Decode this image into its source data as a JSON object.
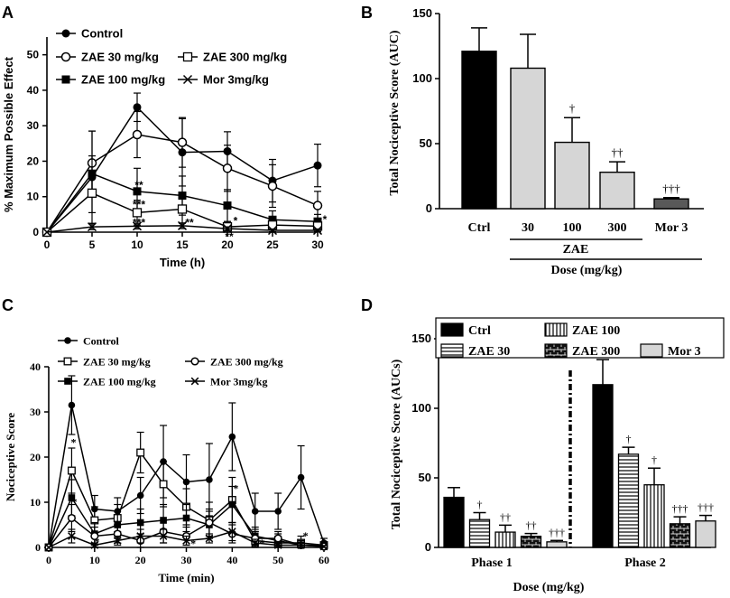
{
  "chart_data": [
    {
      "panel": "A",
      "type": "line",
      "xlabel": "Time (h)",
      "ylabel": "% Maximum Possible Effect",
      "xlim": [
        0,
        30
      ],
      "ylim": [
        0,
        55
      ],
      "x_ticks": [
        "0",
        "5",
        "10",
        "15",
        "20",
        "25",
        "30"
      ],
      "y_ticks": [
        "0",
        "10",
        "20",
        "30",
        "40",
        "50"
      ],
      "legend": [
        "Control",
        "ZAE 30 mg/kg",
        "ZAE 300 mg/kg",
        "ZAE 100 mg/kg",
        "Mor 3mg/kg"
      ],
      "x": [
        0,
        5,
        10,
        15,
        20,
        25,
        30
      ],
      "series": [
        {
          "name": "Control",
          "values": [
            0,
            15.5,
            35.2,
            22.5,
            22.8,
            14.5,
            18.8
          ],
          "err": [
            0,
            13,
            4,
            9.5,
            5.5,
            6,
            6
          ]
        },
        {
          "name": "ZAE 30 mg/kg",
          "values": [
            0,
            19.5,
            27.5,
            25.3,
            18,
            13,
            7.5
          ],
          "err": [
            0,
            9,
            6.5,
            7,
            6.5,
            6,
            4
          ]
        },
        {
          "name": "ZAE 100 mg/kg",
          "values": [
            0,
            16.5,
            11.5,
            10.3,
            7.5,
            3.5,
            3
          ],
          "err": [
            0,
            5,
            6.5,
            5.5,
            4.5,
            2.5,
            2
          ]
        },
        {
          "name": "ZAE 300 mg/kg",
          "values": [
            0,
            11,
            5.5,
            6.5,
            1.5,
            2,
            1.7
          ],
          "err": [
            0,
            5.5,
            3.5,
            4,
            1.5,
            2,
            1.5
          ]
        },
        {
          "name": "Mor 3mg/kg",
          "values": [
            0,
            1.5,
            1.7,
            1.8,
            1,
            0.5,
            0.5
          ],
          "err": [
            0,
            0.8,
            0.8,
            0.8,
            0.5,
            0.4,
            0.4
          ]
        }
      ],
      "annotations": [
        "**",
        "***",
        "***",
        "**",
        "*",
        "**",
        "*"
      ]
    },
    {
      "panel": "B",
      "type": "bar",
      "ylabel": "Total Nociceptive Score (AUC)",
      "xlabel": "Dose (mg/kg)",
      "group_label": "ZAE",
      "ylim": [
        0,
        150
      ],
      "y_ticks": [
        "0",
        "50",
        "100",
        "150"
      ],
      "categories": [
        "Ctrl",
        "30",
        "100",
        "300",
        "Mor 3"
      ],
      "values": [
        121,
        108,
        51,
        28,
        7.5
      ],
      "err": [
        18,
        26,
        19,
        8,
        1
      ],
      "colors": [
        "#000000",
        "#d6d6d6",
        "#d6d6d6",
        "#d6d6d6",
        "#595959"
      ],
      "annotations": [
        "",
        "",
        "†",
        "††",
        "†††"
      ]
    },
    {
      "panel": "C",
      "type": "line",
      "xlabel": "Time (min)",
      "ylabel": "Nociceptive Score",
      "xlim": [
        0,
        60
      ],
      "ylim": [
        0,
        40
      ],
      "x_ticks": [
        "0",
        "10",
        "20",
        "30",
        "40",
        "50",
        "60"
      ],
      "y_ticks": [
        "0",
        "10",
        "20",
        "30",
        "40"
      ],
      "legend": [
        "Control",
        "ZAE 30 mg/kg",
        "ZAE 300 mg/kg",
        "ZAE 100 mg/kg",
        "Mor 3mg/kg"
      ],
      "x": [
        0,
        5,
        10,
        15,
        20,
        25,
        30,
        35,
        40,
        45,
        50,
        55,
        60
      ],
      "series": [
        {
          "name": "Control",
          "values": [
            0,
            31.5,
            8.5,
            8,
            11.5,
            19,
            14.5,
            15,
            24.5,
            8,
            8,
            15.5,
            1
          ],
          "err": [
            0,
            6.5,
            3,
            3,
            4,
            8,
            6,
            8,
            7.5,
            4,
            4,
            7,
            1
          ]
        },
        {
          "name": "ZAE 30 mg/kg",
          "values": [
            0,
            17,
            6,
            6.5,
            21,
            14,
            9,
            6,
            10.5,
            1.5,
            1,
            1,
            0.5
          ],
          "err": [
            0,
            5,
            3,
            3,
            4.5,
            5,
            4,
            4,
            5,
            2,
            1.5,
            1.5,
            0.5
          ]
        },
        {
          "name": "ZAE 100 mg/kg",
          "values": [
            0,
            11,
            3,
            5,
            5.5,
            6,
            6.5,
            5,
            9.5,
            2.5,
            1.5,
            0.5,
            0.5
          ],
          "err": [
            0,
            4,
            2.5,
            3,
            3,
            3.5,
            3,
            3,
            4,
            2,
            1.5,
            1,
            0.5
          ]
        },
        {
          "name": "ZAE 300 mg/kg",
          "values": [
            0,
            6.5,
            2.5,
            3,
            1.5,
            3.5,
            2.5,
            5.5,
            3,
            2,
            2,
            0.5,
            0.2
          ],
          "err": [
            0,
            3,
            2,
            2,
            1.5,
            2.5,
            2,
            3,
            2,
            1.5,
            1.5,
            0.5,
            0.2
          ]
        },
        {
          "name": "Mor 3mg/kg",
          "values": [
            0,
            2.5,
            0.5,
            1.5,
            2.5,
            2.5,
            1.5,
            2,
            3.5,
            1,
            0.5,
            0.5,
            0.2
          ],
          "err": [
            0,
            1.5,
            0.5,
            1,
            1.5,
            1.5,
            1,
            1,
            2,
            0.8,
            0.5,
            0.5,
            0.2
          ]
        }
      ],
      "annotations": [
        "*",
        "*",
        "*",
        "*",
        "*",
        "*",
        "*"
      ]
    },
    {
      "panel": "D",
      "type": "bar",
      "ylabel": "Total Nociceptive Score (AUCs)",
      "xlabel": "Dose (mg/kg)",
      "ylim": [
        0,
        150
      ],
      "y_ticks": [
        "0",
        "50",
        "100",
        "150"
      ],
      "categories": [
        "Phase  1",
        "Phase  2"
      ],
      "legend": [
        "Ctrl",
        "ZAE 100",
        "ZAE 30",
        "ZAE 300",
        "Mor 3"
      ],
      "series": [
        {
          "name": "Ctrl",
          "values": [
            36,
            117
          ],
          "err": [
            7,
            18
          ],
          "fill": "#000000"
        },
        {
          "name": "ZAE 30",
          "values": [
            20,
            67
          ],
          "err": [
            5,
            5
          ],
          "fill": "hlines"
        },
        {
          "name": "ZAE 100",
          "values": [
            11,
            45
          ],
          "err": [
            5,
            12
          ],
          "fill": "vlines"
        },
        {
          "name": "ZAE 300",
          "values": [
            8,
            17
          ],
          "err": [
            2,
            5
          ],
          "fill": "brick"
        },
        {
          "name": "Mor 3",
          "values": [
            4,
            19
          ],
          "err": [
            1,
            4
          ],
          "fill": "#d6d6d6"
        }
      ],
      "annotations": [
        [
          "",
          "†",
          "††",
          "††",
          "†††"
        ],
        [
          "",
          "†",
          "†",
          "†††",
          "†††"
        ]
      ]
    }
  ],
  "panel_letters": [
    "A",
    "B",
    "C",
    "D"
  ]
}
